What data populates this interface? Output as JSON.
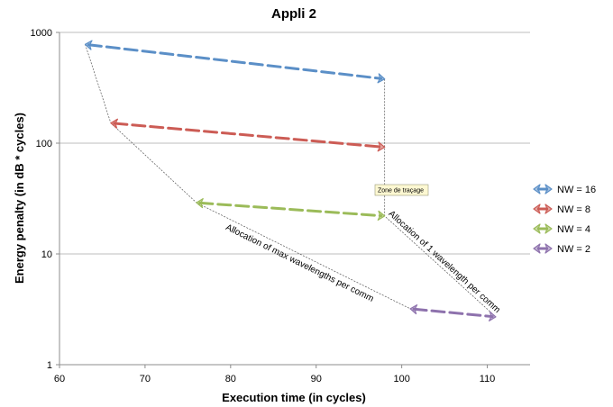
{
  "chart_data": {
    "type": "scatter",
    "title": "Appli 2",
    "xlabel": "Execution time (in cycles)",
    "ylabel": "Energy penalty (in dB * cycles)",
    "xlim": [
      60,
      115
    ],
    "ylim": [
      1,
      1000
    ],
    "yscale": "log",
    "x_ticks": [
      "60",
      "70",
      "80",
      "90",
      "100",
      "110"
    ],
    "y_ticks": [
      "1",
      "10",
      "100",
      "1000"
    ],
    "grid": "horizontal",
    "legend_position": "right",
    "series": [
      {
        "name": "NW = 16",
        "color": "#5b8fc7",
        "points": [
          [
            63,
            780
          ],
          [
            98,
            380
          ]
        ]
      },
      {
        "name": "NW = 8",
        "color": "#cc5c55",
        "points": [
          [
            66,
            152
          ],
          [
            98,
            92
          ]
        ]
      },
      {
        "name": "NW = 4",
        "color": "#9bbb59",
        "points": [
          [
            76,
            29
          ],
          [
            98,
            22
          ]
        ]
      },
      {
        "name": "NW = 2",
        "color": "#8e72ad",
        "points": [
          [
            101,
            3.2
          ],
          [
            111,
            2.7
          ]
        ]
      }
    ],
    "trend_lines": [
      {
        "label": "Allocation of max wavelengths per comm",
        "points": [
          [
            63,
            780
          ],
          [
            66,
            152
          ],
          [
            76,
            29
          ],
          [
            101,
            3.2
          ]
        ]
      },
      {
        "label": "Allocation of 1 wavelength per comm",
        "points": [
          [
            98,
            380
          ],
          [
            98,
            92
          ],
          [
            98,
            22
          ],
          [
            111,
            2.7
          ]
        ]
      }
    ],
    "tooltip": "Zone de traçage"
  }
}
